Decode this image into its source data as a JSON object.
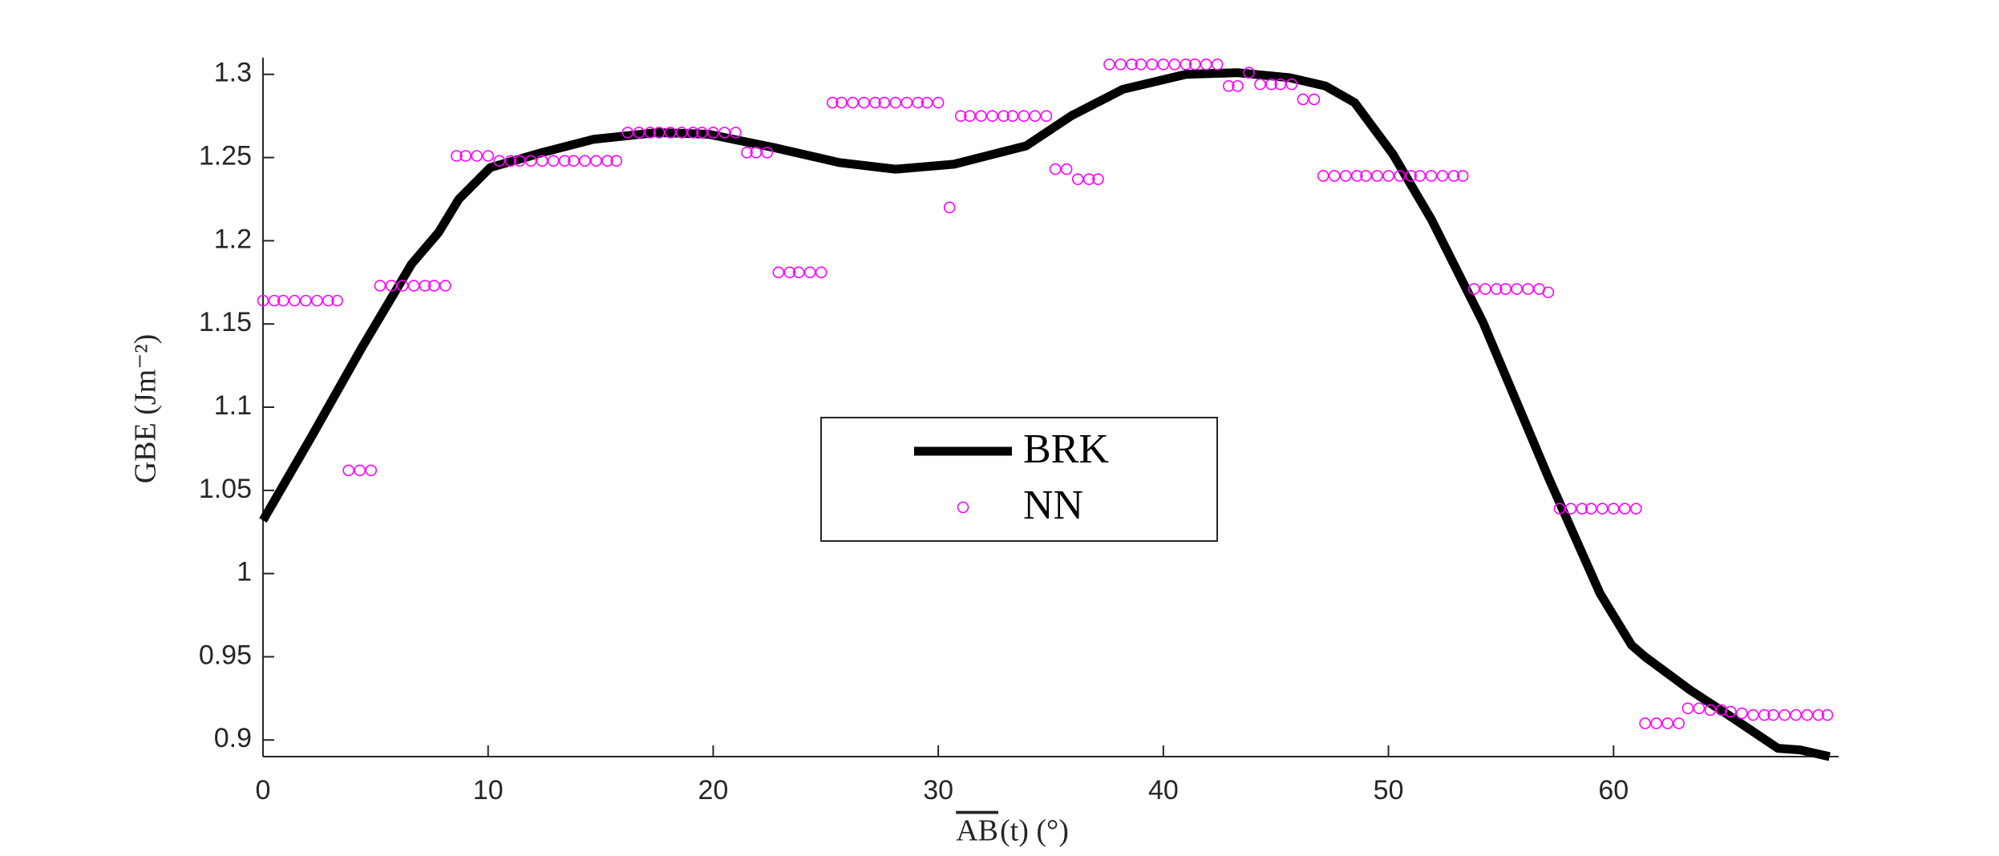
{
  "chart_data": {
    "type": "line",
    "xlabel": {
      "overline": "AB",
      "rest": "(t) (°)"
    },
    "ylabel": "GBE (Jm⁻²)",
    "xlim": [
      0,
      70
    ],
    "ylim": [
      0.89,
      1.31
    ],
    "xticks": [
      0,
      10,
      20,
      30,
      40,
      50,
      60
    ],
    "yticks": [
      0.9,
      0.95,
      1,
      1.05,
      1.1,
      1.15,
      1.2,
      1.25,
      1.3
    ],
    "legend": "center",
    "series": [
      {
        "name": "BRK",
        "type": "line",
        "color": "#000000",
        "x": [
          0,
          2.1,
          4.4,
          6.6,
          7.8,
          8.7,
          10.1,
          12.4,
          14.7,
          17.5,
          19.8,
          22.7,
          25.6,
          28.1,
          30.7,
          33.9,
          35.9,
          38.2,
          41.0,
          43.3,
          45.6,
          47.2,
          48.5,
          50.2,
          51.9,
          54.2,
          57.1,
          59.4,
          60.8,
          61.4,
          63.4,
          65.1,
          66.2,
          67.3,
          68.3,
          69.6
        ],
        "values": [
          1.032,
          1.081,
          1.136,
          1.186,
          1.205,
          1.225,
          1.244,
          1.253,
          1.261,
          1.265,
          1.264,
          1.256,
          1.247,
          1.243,
          1.246,
          1.257,
          1.275,
          1.291,
          1.3,
          1.301,
          1.298,
          1.293,
          1.283,
          1.252,
          1.213,
          1.151,
          1.058,
          0.988,
          0.957,
          0.95,
          0.93,
          0.915,
          0.905,
          0.895,
          0.894,
          0.89
        ]
      },
      {
        "name": "NN",
        "type": "scatter",
        "color": "#ff00ff",
        "x": [
          0,
          0.5,
          0.9,
          1.4,
          1.9,
          2.4,
          2.9,
          3.3,
          3.8,
          4.3,
          4.8,
          5.2,
          5.7,
          6.2,
          6.7,
          7.2,
          7.6,
          8.1,
          8.6,
          9.0,
          9.5,
          10.0,
          10.5,
          11.0,
          11.4,
          11.9,
          12.4,
          12.9,
          13.4,
          13.8,
          14.3,
          14.8,
          15.3,
          15.7,
          16.2,
          16.7,
          17.2,
          17.6,
          18.1,
          18.6,
          19.1,
          19.5,
          20.0,
          20.5,
          21.0,
          21.5,
          21.9,
          22.4,
          22.9,
          23.4,
          23.8,
          24.3,
          24.8,
          25.3,
          25.7,
          26.2,
          26.7,
          27.2,
          27.6,
          28.1,
          28.6,
          29.1,
          29.5,
          30.0,
          30.5,
          31.0,
          31.4,
          31.9,
          32.4,
          32.9,
          33.3,
          33.8,
          34.3,
          34.8,
          35.2,
          35.7,
          36.2,
          36.7,
          37.1,
          37.6,
          38.1,
          38.6,
          39.0,
          39.5,
          40.0,
          40.5,
          41.0,
          41.4,
          41.9,
          42.4,
          42.9,
          43.3,
          43.8,
          44.3,
          44.8,
          45.2,
          45.7,
          46.2,
          46.7,
          47.1,
          47.6,
          48.1,
          48.6,
          49.0,
          49.5,
          50.0,
          50.5,
          51.0,
          51.4,
          51.9,
          52.4,
          52.9,
          53.3,
          53.8,
          54.3,
          54.8,
          55.2,
          55.7,
          56.2,
          56.7,
          57.1,
          57.6,
          58.1,
          58.6,
          59.0,
          59.5,
          60.0,
          60.5,
          61.0,
          61.4,
          61.9,
          62.4,
          62.9,
          63.3,
          63.8,
          64.3,
          64.8,
          65.2,
          65.7,
          66.2,
          66.7,
          67.1,
          67.6,
          68.1,
          68.6,
          69.1,
          69.5
        ],
        "values": [
          1.164,
          1.164,
          1.164,
          1.164,
          1.164,
          1.164,
          1.164,
          1.164,
          1.062,
          1.062,
          1.062,
          1.173,
          1.173,
          1.173,
          1.173,
          1.173,
          1.173,
          1.173,
          1.251,
          1.251,
          1.251,
          1.251,
          1.248,
          1.248,
          1.248,
          1.248,
          1.248,
          1.248,
          1.248,
          1.248,
          1.248,
          1.248,
          1.248,
          1.248,
          1.265,
          1.265,
          1.265,
          1.265,
          1.265,
          1.265,
          1.265,
          1.265,
          1.265,
          1.265,
          1.265,
          1.253,
          1.253,
          1.253,
          1.181,
          1.181,
          1.181,
          1.181,
          1.181,
          1.283,
          1.283,
          1.283,
          1.283,
          1.283,
          1.283,
          1.283,
          1.283,
          1.283,
          1.283,
          1.283,
          1.22,
          1.275,
          1.275,
          1.275,
          1.275,
          1.275,
          1.275,
          1.275,
          1.275,
          1.275,
          1.243,
          1.243,
          1.237,
          1.237,
          1.237,
          1.306,
          1.306,
          1.306,
          1.306,
          1.306,
          1.306,
          1.306,
          1.306,
          1.306,
          1.306,
          1.306,
          1.293,
          1.293,
          1.301,
          1.294,
          1.294,
          1.294,
          1.294,
          1.285,
          1.285,
          1.239,
          1.239,
          1.239,
          1.239,
          1.239,
          1.239,
          1.239,
          1.239,
          1.239,
          1.239,
          1.239,
          1.239,
          1.239,
          1.239,
          1.171,
          1.171,
          1.171,
          1.171,
          1.171,
          1.171,
          1.171,
          1.169,
          1.039,
          1.039,
          1.039,
          1.039,
          1.039,
          1.039,
          1.039,
          1.039,
          0.91,
          0.91,
          0.91,
          0.91,
          0.919,
          0.919,
          0.918,
          0.918,
          0.917,
          0.916,
          0.915,
          0.915,
          0.915,
          0.915,
          0.915,
          0.915,
          0.915,
          0.915
        ]
      }
    ]
  }
}
